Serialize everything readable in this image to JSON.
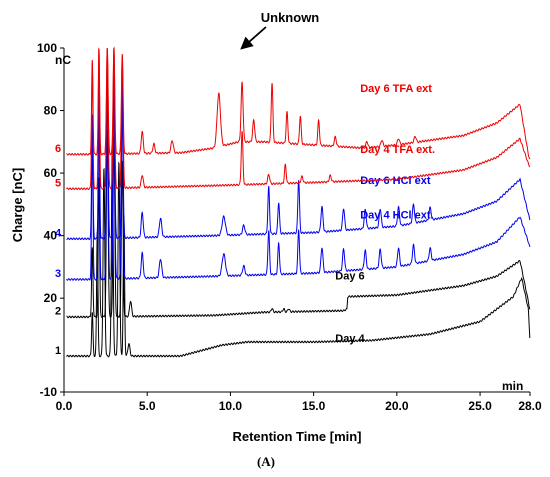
{
  "chart_data": {
    "type": "line",
    "title": "",
    "xlabel": "Retention Time [min]",
    "ylabel": "Charge [nC]",
    "x_unit": "min",
    "y_unit": "nC",
    "xlim": [
      0,
      28
    ],
    "ylim": [
      -10,
      100
    ],
    "x_ticks": [
      "0.0",
      "5.0",
      "10.0",
      "15.0",
      "20.0",
      "25.0",
      "28.0"
    ],
    "x_tick_values": [
      0,
      5,
      10,
      15,
      20,
      25,
      28
    ],
    "y_ticks": [
      "-10",
      "20",
      "40",
      "60",
      "80",
      "100"
    ],
    "y_tick_values": [
      -10,
      20,
      40,
      60,
      80,
      100
    ],
    "annotation": "Unknown",
    "annotation_x": 10.7,
    "caption": "(A)",
    "traces": [
      {
        "index_label": "1",
        "name": "Day 4",
        "color": "#000000",
        "baseline": 1.5,
        "label_x": 16.3,
        "label_y": 6,
        "drift": [
          [
            0,
            0
          ],
          [
            1.8,
            0
          ],
          [
            7,
            0
          ],
          [
            9.5,
            3.5
          ],
          [
            11,
            4.5
          ],
          [
            15,
            4.5
          ],
          [
            18.5,
            5
          ],
          [
            22,
            7
          ],
          [
            25,
            11
          ],
          [
            27,
            19
          ],
          [
            27.5,
            25
          ],
          [
            27.9,
            15
          ],
          [
            28,
            5
          ]
        ],
        "peaks": [
          [
            1.7,
            14,
            0.04
          ],
          [
            2.0,
            40,
            0.04
          ],
          [
            2.4,
            60,
            0.05
          ],
          [
            2.9,
            66,
            0.05
          ],
          [
            3.3,
            62,
            0.05
          ],
          [
            3.6,
            45,
            0.04
          ],
          [
            3.9,
            4,
            0.06
          ]
        ]
      },
      {
        "index_label": "2",
        "name": "Day 6",
        "color": "#000000",
        "baseline": 14,
        "label_x": 16.3,
        "label_y": 26,
        "drift": [
          [
            0,
            0
          ],
          [
            1.8,
            0
          ],
          [
            9,
            0.5
          ],
          [
            12,
            1.5
          ],
          [
            16.8,
            2
          ],
          [
            17.0,
            2.5
          ],
          [
            17.05,
            6.5
          ],
          [
            20,
            7
          ],
          [
            24,
            10
          ],
          [
            26,
            13
          ],
          [
            27.4,
            18
          ],
          [
            27.9,
            5
          ],
          [
            28,
            2
          ]
        ],
        "peaks": [
          [
            1.7,
            22,
            0.04
          ],
          [
            2.1,
            45,
            0.04
          ],
          [
            2.6,
            60,
            0.05
          ],
          [
            3.0,
            58,
            0.05
          ],
          [
            3.5,
            50,
            0.05
          ],
          [
            4.0,
            5,
            0.06
          ],
          [
            12.5,
            1.2,
            0.05
          ],
          [
            13.2,
            1,
            0.05
          ],
          [
            13.5,
            1,
            0.05
          ]
        ]
      },
      {
        "index_label": "3",
        "name": "Day 4  HCl ext.",
        "color": "#0000ee",
        "baseline": 26,
        "label_x": 17.8,
        "label_y": 45.5,
        "drift": [
          [
            0,
            0
          ],
          [
            1.6,
            0
          ],
          [
            9,
            1
          ],
          [
            15,
            2
          ],
          [
            20,
            4
          ],
          [
            24,
            8
          ],
          [
            26,
            12
          ],
          [
            27.4,
            20
          ],
          [
            27.9,
            12
          ],
          [
            28,
            10
          ]
        ],
        "peaks": [
          [
            1.7,
            45,
            0.04
          ],
          [
            2.1,
            55,
            0.04
          ],
          [
            2.6,
            60,
            0.05
          ],
          [
            3.0,
            58,
            0.05
          ],
          [
            3.5,
            55,
            0.05
          ],
          [
            4.7,
            8,
            0.06
          ],
          [
            5.8,
            6,
            0.07
          ],
          [
            9.6,
            7,
            0.1
          ],
          [
            10.8,
            3,
            0.07
          ],
          [
            12.3,
            14,
            0.05
          ],
          [
            12.9,
            10,
            0.05
          ],
          [
            14.1,
            14,
            0.05
          ],
          [
            15.5,
            8,
            0.06
          ],
          [
            16.8,
            7,
            0.06
          ],
          [
            18.1,
            6,
            0.06
          ],
          [
            19.0,
            6,
            0.06
          ],
          [
            20.1,
            6,
            0.06
          ],
          [
            21.0,
            6,
            0.06
          ],
          [
            22.0,
            4,
            0.06
          ]
        ]
      },
      {
        "index_label": "4",
        "name": "Day 6  HCl ext",
        "color": "#0000ee",
        "baseline": 39,
        "label_x": 17.8,
        "label_y": 56.5,
        "drift": [
          [
            0,
            0
          ],
          [
            1.6,
            0
          ],
          [
            9,
            1
          ],
          [
            15,
            2
          ],
          [
            20,
            4
          ],
          [
            24,
            8
          ],
          [
            26,
            12
          ],
          [
            27.4,
            19
          ],
          [
            27.9,
            8
          ],
          [
            28,
            6
          ]
        ],
        "peaks": [
          [
            1.7,
            40,
            0.04
          ],
          [
            2.1,
            50,
            0.04
          ],
          [
            2.6,
            55,
            0.05
          ],
          [
            3.0,
            53,
            0.05
          ],
          [
            3.5,
            50,
            0.05
          ],
          [
            4.7,
            8,
            0.06
          ],
          [
            5.8,
            6,
            0.07
          ],
          [
            9.6,
            6,
            0.1
          ],
          [
            10.8,
            3,
            0.07
          ],
          [
            12.3,
            15,
            0.05
          ],
          [
            12.9,
            10,
            0.05
          ],
          [
            14.1,
            17,
            0.05
          ],
          [
            15.5,
            8,
            0.06
          ],
          [
            16.8,
            7,
            0.06
          ],
          [
            18.1,
            6,
            0.06
          ],
          [
            19.0,
            6,
            0.06
          ],
          [
            20.1,
            6,
            0.06
          ],
          [
            21.0,
            6,
            0.06
          ],
          [
            22.0,
            4,
            0.06
          ]
        ]
      },
      {
        "index_label": "5",
        "name": "Day 4  TFA ext.",
        "color": "#ee0000",
        "baseline": 55,
        "label_x": 17.8,
        "label_y": 66.5,
        "drift": [
          [
            0,
            0
          ],
          [
            1.6,
            0
          ],
          [
            9,
            1
          ],
          [
            15,
            2
          ],
          [
            20,
            3
          ],
          [
            24,
            6
          ],
          [
            26,
            10
          ],
          [
            27.4,
            16
          ],
          [
            27.9,
            8
          ],
          [
            28,
            7
          ]
        ],
        "peaks": [
          [
            1.7,
            40,
            0.04
          ],
          [
            2.1,
            45,
            0.04
          ],
          [
            2.6,
            45,
            0.05
          ],
          [
            3.0,
            45,
            0.05
          ],
          [
            3.5,
            42,
            0.05
          ],
          [
            4.7,
            4,
            0.06
          ],
          [
            10.7,
            17,
            0.05
          ],
          [
            12.3,
            3,
            0.06
          ],
          [
            13.3,
            6,
            0.05
          ],
          [
            14.3,
            2,
            0.06
          ],
          [
            16.0,
            2,
            0.06
          ]
        ]
      },
      {
        "index_label": "6",
        "name": "Day 6  TFA ext",
        "color": "#ee0000",
        "baseline": 66,
        "label_x": 17.8,
        "label_y": 86,
        "drift": [
          [
            0,
            0
          ],
          [
            1.6,
            0
          ],
          [
            7,
            0.5
          ],
          [
            9,
            2
          ],
          [
            10.5,
            4
          ],
          [
            12,
            4
          ],
          [
            15,
            3
          ],
          [
            18,
            2
          ],
          [
            20,
            3
          ],
          [
            24,
            6
          ],
          [
            26,
            10
          ],
          [
            27.4,
            16
          ],
          [
            27.9,
            0
          ],
          [
            28,
            -2
          ]
        ],
        "peaks": [
          [
            1.7,
            30,
            0.04
          ],
          [
            2.1,
            34,
            0.04
          ],
          [
            2.6,
            34,
            0.05
          ],
          [
            3.0,
            34,
            0.05
          ],
          [
            3.5,
            32,
            0.05
          ],
          [
            4.7,
            7,
            0.06
          ],
          [
            5.4,
            3,
            0.06
          ],
          [
            6.5,
            4,
            0.07
          ],
          [
            9.3,
            17,
            0.1
          ],
          [
            10.7,
            19,
            0.06
          ],
          [
            11.4,
            7,
            0.06
          ],
          [
            12.5,
            19,
            0.05
          ],
          [
            13.4,
            10,
            0.05
          ],
          [
            14.2,
            9,
            0.05
          ],
          [
            15.3,
            8,
            0.05
          ],
          [
            16.3,
            3,
            0.06
          ],
          [
            18.2,
            2,
            0.06
          ],
          [
            19.1,
            2,
            0.06
          ],
          [
            20.1,
            2,
            0.06
          ],
          [
            21.1,
            2,
            0.06
          ]
        ]
      }
    ]
  }
}
